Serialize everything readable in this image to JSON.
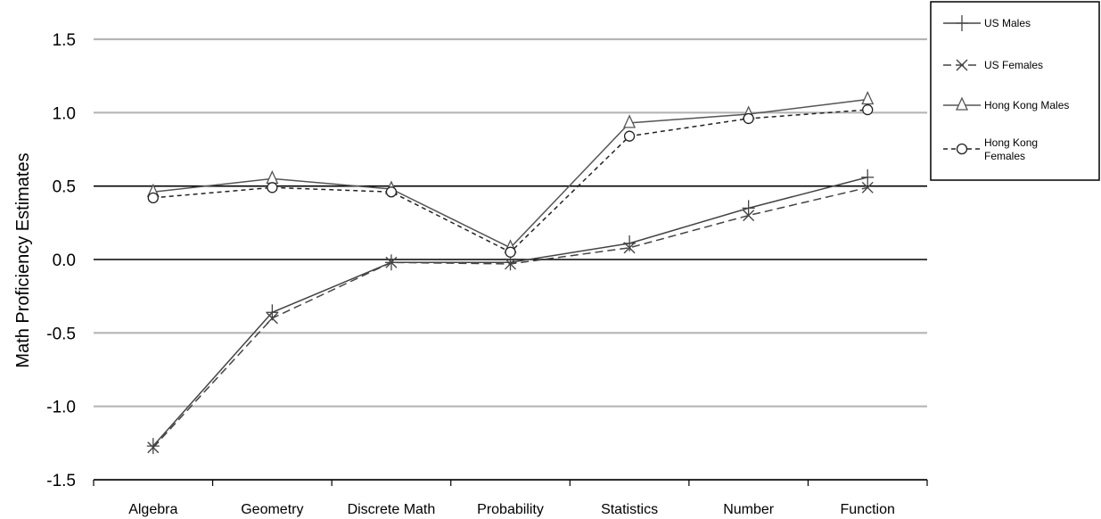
{
  "chart_data": {
    "type": "line",
    "title": "",
    "xlabel": "",
    "ylabel": "Math Proficiency Estimates",
    "categories": [
      "Algebra",
      "Geometry",
      "Discrete Math",
      "Probability",
      "Statistics",
      "Number",
      "Function"
    ],
    "ylim": [
      -1.5,
      1.5
    ],
    "yticks": [
      "1.5",
      "1.0",
      "0.5",
      "0.0",
      "-0.5",
      "-1.0",
      "-1.5"
    ],
    "ytick_values": [
      1.5,
      1.0,
      0.5,
      0.0,
      -0.5,
      -1.0,
      -1.5
    ],
    "grid": true,
    "legend_position": "top-right",
    "series": [
      {
        "name": "US Males",
        "marker": "plus",
        "dash": "solid",
        "color": "#444444",
        "values": [
          -1.27,
          -0.36,
          -0.02,
          -0.02,
          0.11,
          0.35,
          0.56
        ]
      },
      {
        "name": "US Females",
        "marker": "x",
        "dash": "dashed",
        "color": "#444444",
        "values": [
          -1.28,
          -0.4,
          -0.02,
          -0.03,
          0.08,
          0.3,
          0.49
        ]
      },
      {
        "name": "Hong Kong Males",
        "marker": "triangle",
        "dash": "solid",
        "color": "#555555",
        "values": [
          0.46,
          0.55,
          0.48,
          0.08,
          0.93,
          0.99,
          1.09
        ]
      },
      {
        "name": "Hong Kong Females",
        "marker": "circle",
        "dash": "dotted",
        "color": "#222222",
        "values": [
          0.42,
          0.49,
          0.46,
          0.05,
          0.84,
          0.96,
          1.02
        ]
      }
    ],
    "legend_lines": [
      [
        "US Males"
      ],
      [
        "US Females"
      ],
      [
        "Hong Kong Males"
      ],
      [
        "Hong Kong",
        "Females"
      ]
    ]
  }
}
